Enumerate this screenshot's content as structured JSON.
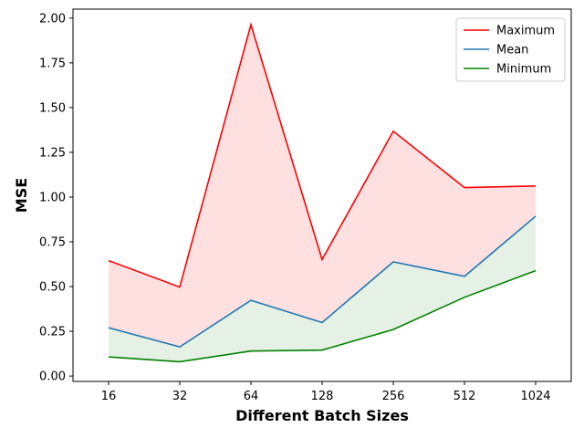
{
  "chart_data": {
    "type": "line",
    "title": "",
    "xlabel": "Different Batch Sizes",
    "ylabel": "MSE",
    "categories": [
      "16",
      "32",
      "64",
      "128",
      "256",
      "512",
      "1024"
    ],
    "ylim": [
      0,
      2.05
    ],
    "yticks": [
      "0.00",
      "0.25",
      "0.50",
      "0.75",
      "1.00",
      "1.25",
      "1.50",
      "1.75",
      "2.00"
    ],
    "grid": false,
    "legend_position": "top-right",
    "series": [
      {
        "name": "Maximum",
        "color": "#ff0000",
        "values": [
          0.645,
          0.497,
          1.963,
          0.651,
          1.368,
          1.053,
          1.062
        ]
      },
      {
        "name": "Mean",
        "color": "#1f77b4",
        "values": [
          0.27,
          0.163,
          0.423,
          0.299,
          0.638,
          0.557,
          0.893
        ]
      },
      {
        "name": "Minimum",
        "color": "#008000",
        "values": [
          0.107,
          0.08,
          0.14,
          0.145,
          0.26,
          0.44,
          0.589
        ]
      }
    ],
    "fills": [
      {
        "between": [
          "Maximum",
          "Mean"
        ],
        "color": "#ffe0e0"
      },
      {
        "between": [
          "Mean",
          "Minimum"
        ],
        "color": "#e4f1e4"
      }
    ]
  }
}
